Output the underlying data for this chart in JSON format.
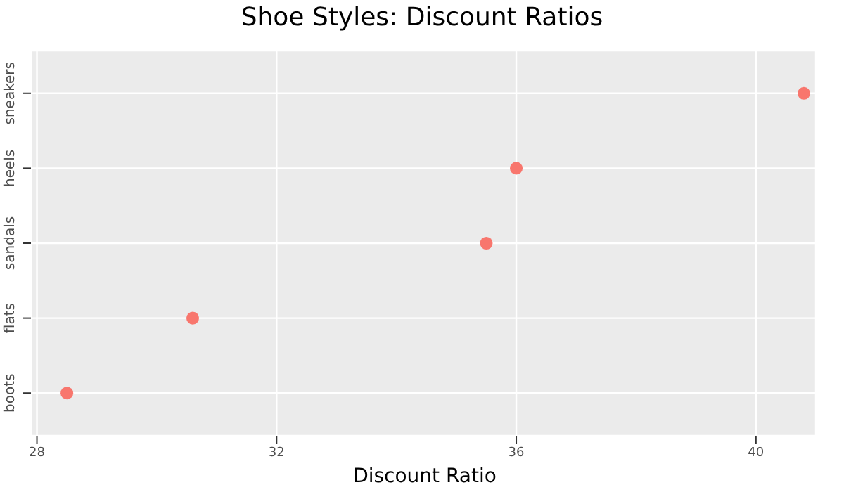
{
  "chart_data": {
    "type": "scatter",
    "title": "Shoe Styles: Discount Ratios",
    "xlabel": "Discount Ratio",
    "orientation": "horizontal",
    "categories": [
      "sneakers",
      "heels",
      "sandals",
      "flats",
      "boots"
    ],
    "series": [
      {
        "color": "#f8766d",
        "values": [
          40.8,
          36.0,
          35.5,
          30.6,
          28.5
        ]
      }
    ],
    "xlim": [
      27.9,
      41.0
    ],
    "xticks": [
      28,
      32,
      36,
      40
    ],
    "grid": true,
    "marker": "circle"
  }
}
